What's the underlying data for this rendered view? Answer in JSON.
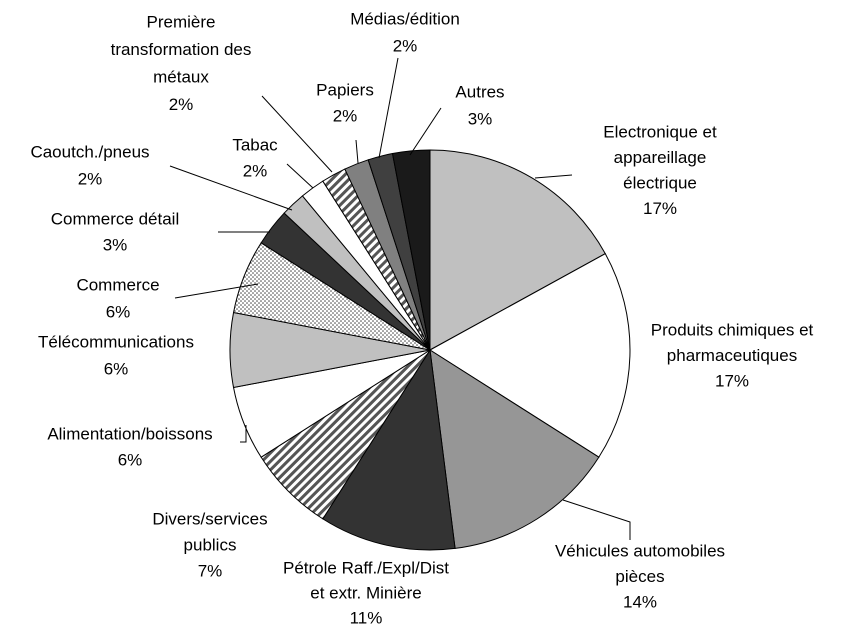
{
  "chart_data": {
    "type": "pie",
    "categories": [
      [
        "Electronique et",
        "appareillage",
        "électrique"
      ],
      [
        "Produits chimiques et",
        "pharmaceutiques"
      ],
      [
        "Véhicules automobiles",
        "pièces"
      ],
      [
        "Pétrole Raff./Expl/Dist",
        "et extr. Minière"
      ],
      [
        "Divers/services",
        "publics"
      ],
      [
        "Alimentation/boissons"
      ],
      [
        "Télécommunications"
      ],
      [
        "Commerce"
      ],
      [
        "Commerce détail"
      ],
      [
        "Caoutch./pneus"
      ],
      [
        "Tabac"
      ],
      [
        "Première",
        "transformation des",
        "métaux"
      ],
      [
        "Papiers"
      ],
      [
        "Médias/édition"
      ],
      [
        "Autres"
      ]
    ],
    "values": [
      17,
      17,
      14,
      11,
      7,
      6,
      6,
      6,
      3,
      2,
      2,
      2,
      2,
      2,
      3
    ],
    "value_labels": [
      "17%",
      "17%",
      "14%",
      "11%",
      "7%",
      "6%",
      "6%",
      "6%",
      "3%",
      "2%",
      "2%",
      "2%",
      "2%",
      "2%",
      "3%"
    ],
    "colors": [
      "#c0c0c0",
      "#ffffff",
      "#969696",
      "#333333",
      "url(#diag)",
      "#ffffff",
      "#c0c0c0",
      "url(#dots)",
      "#333333",
      "#c0c0c0",
      "#ffffff",
      "url(#diag)",
      "#808080",
      "#404040",
      "#1a1a1a"
    ]
  }
}
